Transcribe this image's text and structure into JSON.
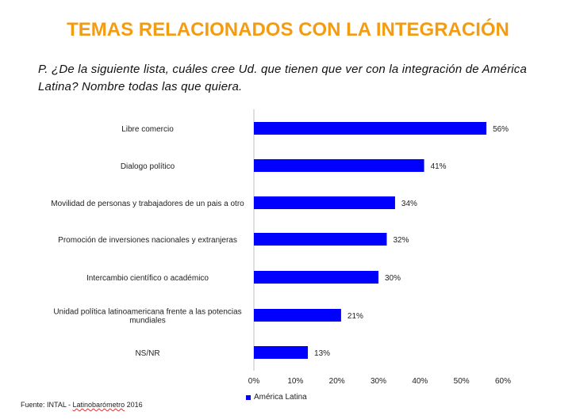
{
  "header": {
    "title": "TEMAS RELACIONADOS CON LA INTEGRACIÓN",
    "question": "P. ¿De la siguiente lista, cuáles cree Ud. que tienen que ver con la integración de América Latina? Nombre todas las que quiera."
  },
  "footer": {
    "source_prefix": "Fuente: INTAL - ",
    "source_underlined": "Latinobarómetro",
    "source_suffix": " 2016"
  },
  "colors": {
    "bar": "#0000FF",
    "title": "#F39C12"
  },
  "chart_data": {
    "type": "bar",
    "orientation": "horizontal",
    "categories": [
      "Libre comercio",
      "Dialogo político",
      "Movilidad de personas y trabajadores de un pais a otro",
      "Promoción de inversiones nacionales y extranjeras",
      "Intercambio científico o académico",
      "Unidad política latinoamericana frente a las potencias mundiales",
      "NS/NR"
    ],
    "series": [
      {
        "name": "América Latina",
        "values": [
          56,
          41,
          34,
          32,
          30,
          21,
          13
        ]
      }
    ],
    "data_labels": [
      "56%",
      "41%",
      "34%",
      "32%",
      "30%",
      "21%",
      "13%"
    ],
    "xlim": [
      0,
      60
    ],
    "xticks": [
      0,
      10,
      20,
      30,
      40,
      50,
      60
    ],
    "xtick_labels": [
      "0%",
      "10%",
      "20%",
      "30%",
      "40%",
      "50%",
      "60%"
    ],
    "legend_position": "bottom",
    "grid": false
  }
}
